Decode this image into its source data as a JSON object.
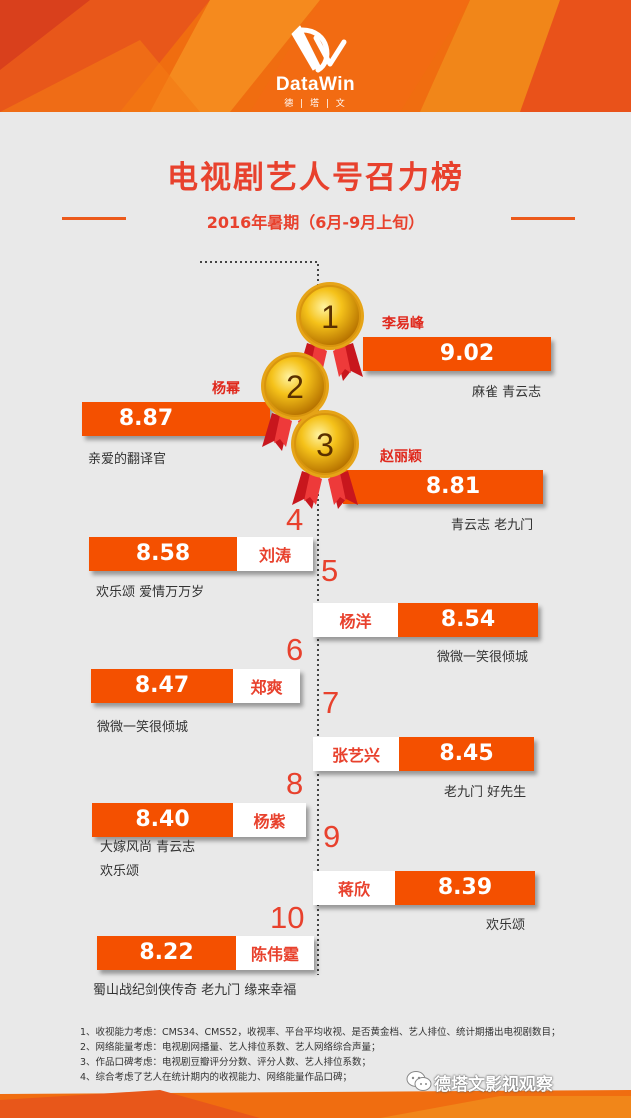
{
  "header": {
    "brand": "DataWin",
    "brand_sub": "德 | 塔 | 文",
    "logo_icon": "datawin-logo-icon"
  },
  "title": "电视剧艺人号召力榜",
  "subtitle": "2016年暑期（6月-9月上旬）",
  "colors": {
    "accent": "#f45000",
    "title": "#e8412d",
    "background": "#e9e9e9"
  },
  "chart_data": {
    "type": "table",
    "title": "电视剧艺人号召力榜",
    "subtitle": "2016年暑期（6月-9月上旬）",
    "rows": [
      {
        "rank": "1",
        "name": "李易峰",
        "score": "9.02",
        "works": "麻雀 青云志",
        "medal": "gold"
      },
      {
        "rank": "2",
        "name": "杨幂",
        "score": "8.87",
        "works": "亲爱的翻译官",
        "medal": "gold"
      },
      {
        "rank": "3",
        "name": "赵丽颖",
        "score": "8.81",
        "works": "青云志 老九门",
        "medal": "gold"
      },
      {
        "rank": "4",
        "name": "刘涛",
        "score": "8.58",
        "works": "欢乐颂 爱情万万岁"
      },
      {
        "rank": "5",
        "name": "杨洋",
        "score": "8.54",
        "works": "微微一笑很倾城"
      },
      {
        "rank": "6",
        "name": "郑爽",
        "score": "8.47",
        "works": "微微一笑很倾城"
      },
      {
        "rank": "7",
        "name": "张艺兴",
        "score": "8.45",
        "works": "老九门 好先生"
      },
      {
        "rank": "8",
        "name": "杨紫",
        "score": "8.40",
        "works": "大嫁风尚 青云志",
        "works2": "欢乐颂"
      },
      {
        "rank": "9",
        "name": "蒋欣",
        "score": "8.39",
        "works": "欢乐颂"
      },
      {
        "rank": "10",
        "name": "陈伟霆",
        "score": "8.22",
        "works": "蜀山战纪剑侠传奇 老九门 缘来幸福"
      }
    ]
  },
  "notes": [
    "1、收视能力考虑：CMS34、CMS52，收视率、平台平均收视、是否黄金档、艺人排位、统计期播出电视剧数目；",
    "2、网络能量考虑：电视剧网播量、艺人排位系数、艺人网络综合声量；",
    "3、作品口碑考虑：电视剧豆瓣评分分数、评分人数、艺人排位系数；",
    "4、综合考虑了艺人在统计期内的收视能力、网络能量作品口碑；"
  ],
  "watermark": "德塔文影视观察",
  "watermark_icon": "wechat-icon"
}
